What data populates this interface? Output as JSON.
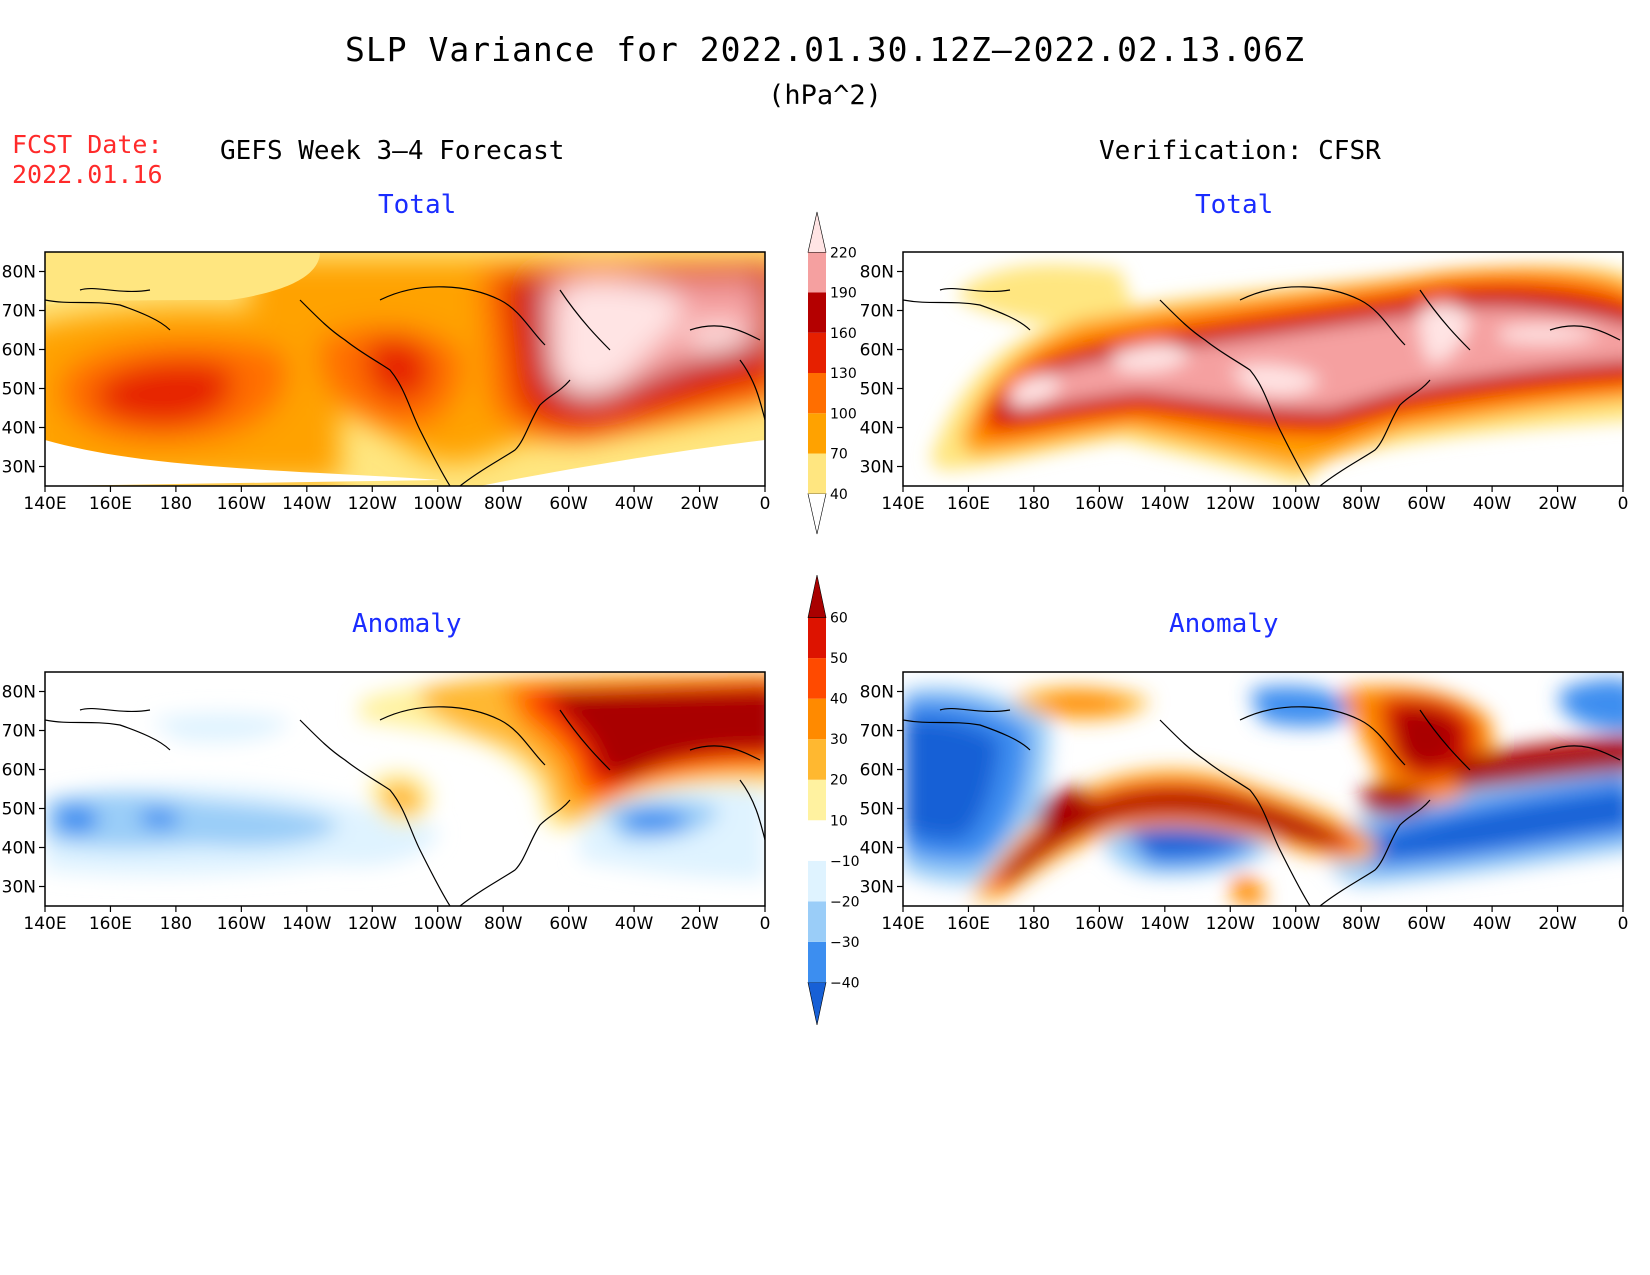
{
  "title": "SLP Variance for 2022.01.30.12Z–2022.02.13.06Z",
  "units": "(hPa^2)",
  "fcst_label_1": "FCST Date:",
  "fcst_label_2": "2022.01.16",
  "left_header": "GEFS Week 3–4 Forecast",
  "right_header": "Verification: CFSR",
  "panels": {
    "fc_total": {
      "subtitle": "Total"
    },
    "vf_total": {
      "subtitle": "Total"
    },
    "fc_anom": {
      "subtitle": "Anomaly"
    },
    "vf_anom": {
      "subtitle": "Anomaly"
    }
  },
  "lat_labels": [
    "80N",
    "70N",
    "60N",
    "50N",
    "40N",
    "30N"
  ],
  "lat_values": [
    80,
    70,
    60,
    50,
    40,
    30
  ],
  "lon_labels": [
    "140E",
    "160E",
    "180",
    "160W",
    "140W",
    "120W",
    "100W",
    "80W",
    "60W",
    "40W",
    "20W",
    "0"
  ],
  "lon_values": [
    140,
    160,
    180,
    200,
    220,
    240,
    260,
    280,
    300,
    320,
    340,
    360
  ],
  "map_extent": {
    "lon": [
      140,
      360
    ],
    "lat": [
      25,
      85
    ]
  },
  "total_colorbar": {
    "levels": [
      "40",
      "70",
      "100",
      "130",
      "160",
      "190",
      "220"
    ],
    "colors": [
      "#ffe680",
      "#ffa200",
      "#ff6e00",
      "#e62000",
      "#b40000",
      "#f5a0a0",
      "#ffe4e4"
    ],
    "low_end_color": "#ffffff"
  },
  "anomaly_colorbar": {
    "levels": [
      "−40",
      "−30",
      "−20",
      "−10",
      "10",
      "20",
      "30",
      "40",
      "50",
      "60"
    ],
    "colors": [
      "#1760d6",
      "#3c8ef0",
      "#9acdf8",
      "#dff3ff",
      "#ffffff",
      "#fff2a0",
      "#ffb830",
      "#ff8a00",
      "#ff4a00",
      "#dd1300",
      "#a90000"
    ]
  },
  "colors": {
    "title_red": "#ff2a2a",
    "subtitle_blue": "#1a2cff"
  }
}
